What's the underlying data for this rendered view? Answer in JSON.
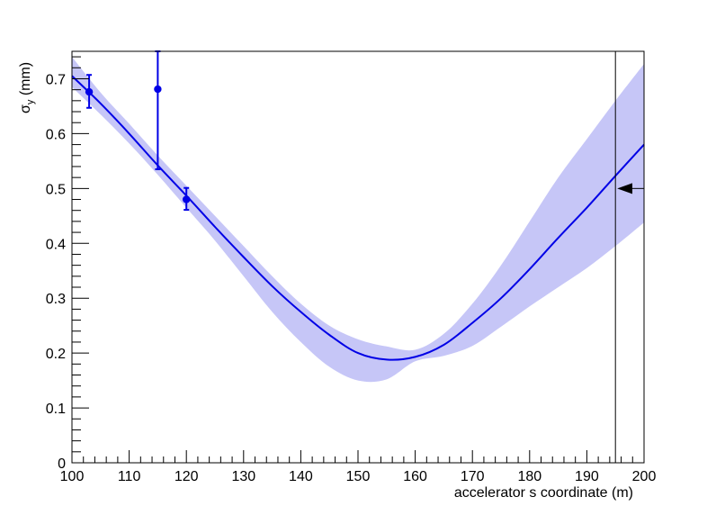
{
  "chart_data": {
    "type": "line",
    "xlabel": "accelerator s coordinate (m)",
    "ylabel": {
      "symbol": "σ",
      "subscript": "y",
      "unit": "(mm)"
    },
    "xlim": [
      100,
      200
    ],
    "ylim": [
      0,
      0.75
    ],
    "x_ticks": [
      "100",
      "110",
      "120",
      "130",
      "140",
      "150",
      "160",
      "170",
      "180",
      "190",
      "200"
    ],
    "y_ticks": [
      "0",
      "0.1",
      "0.2",
      "0.3",
      "0.4",
      "0.5",
      "0.6",
      "0.7"
    ],
    "series": [
      {
        "kind": "model-curve",
        "color": "#0000e6",
        "x": [
          100,
          105,
          110,
          115,
          120,
          125,
          130,
          135,
          140,
          145,
          150,
          155,
          160,
          165,
          170,
          175,
          180,
          185,
          190,
          195,
          200
        ],
        "y": [
          0.705,
          0.655,
          0.6,
          0.542,
          0.487,
          0.43,
          0.375,
          0.322,
          0.275,
          0.233,
          0.2,
          0.188,
          0.193,
          0.215,
          0.255,
          0.3,
          0.353,
          0.41,
          0.465,
          0.523,
          0.58
        ]
      },
      {
        "kind": "uncertainty-band",
        "color": "#c6c6f7",
        "x": [
          100,
          105,
          110,
          115,
          120,
          125,
          130,
          135,
          140,
          145,
          150,
          155,
          160,
          165,
          170,
          175,
          180,
          185,
          190,
          195,
          200
        ],
        "upper": [
          0.74,
          0.675,
          0.618,
          0.56,
          0.505,
          0.45,
          0.395,
          0.34,
          0.29,
          0.25,
          0.225,
          0.212,
          0.206,
          0.235,
          0.29,
          0.36,
          0.44,
          0.52,
          0.59,
          0.66,
          0.727
        ],
        "lower": [
          0.685,
          0.635,
          0.582,
          0.525,
          0.465,
          0.405,
          0.34,
          0.275,
          0.22,
          0.175,
          0.15,
          0.152,
          0.185,
          0.195,
          0.213,
          0.248,
          0.285,
          0.32,
          0.355,
          0.395,
          0.438
        ]
      },
      {
        "kind": "measurements",
        "color": "#0000e6",
        "points": [
          {
            "x": 103,
            "y": 0.676,
            "err_low": 0.029,
            "err_high": 0.031
          },
          {
            "x": 115,
            "y": 0.681,
            "err_low": 0.146,
            "err_high": 0.069
          },
          {
            "x": 120,
            "y": 0.48,
            "err_low": 0.019,
            "err_high": 0.021
          }
        ]
      }
    ],
    "marker_line_x": 195,
    "arrow": {
      "y": 0.5,
      "direction": "left"
    }
  }
}
